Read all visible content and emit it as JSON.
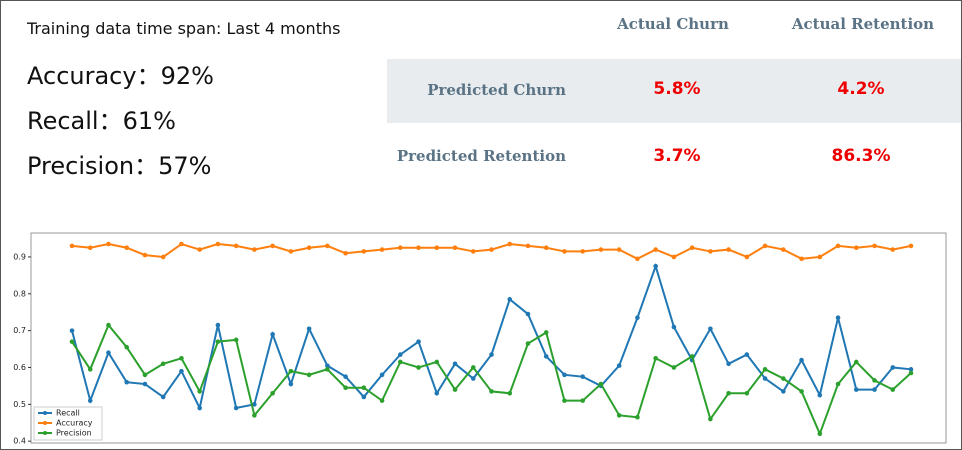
{
  "header": {
    "title": "Training data time span: Last 4 months"
  },
  "metrics": [
    "Accuracy：92%",
    "Recall：61%",
    "Precision：57%"
  ],
  "table": {
    "columns": [
      "Actual Churn",
      "Actual Retention"
    ],
    "rows": [
      {
        "label": "Predicted Churn",
        "cells": [
          "5.8%",
          "4.2%"
        ]
      },
      {
        "label": "Predicted Retention",
        "cells": [
          "3.7%",
          "86.3%"
        ]
      }
    ]
  },
  "chart_data": {
    "type": "line",
    "ylim": [
      0.395,
      0.965
    ],
    "yticks": [
      0.4,
      0.5,
      0.6,
      0.7,
      0.8,
      0.9
    ],
    "legend": "lower left",
    "series": [
      {
        "name": "Recall",
        "color": "#1f77b4",
        "values": [
          0.7,
          0.51,
          0.64,
          0.56,
          0.555,
          0.52,
          0.59,
          0.49,
          0.715,
          0.49,
          0.5,
          0.69,
          0.555,
          0.705,
          0.605,
          0.575,
          0.52,
          0.58,
          0.635,
          0.67,
          0.53,
          0.61,
          0.57,
          0.635,
          0.785,
          0.745,
          0.63,
          0.58,
          0.575,
          0.55,
          0.605,
          0.735,
          0.875,
          0.71,
          0.62,
          0.705,
          0.61,
          0.635,
          0.57,
          0.535,
          0.62,
          0.525,
          0.735,
          0.54,
          0.54,
          0.6,
          0.595
        ]
      },
      {
        "name": "Accuracy",
        "color": "#ff7f0e",
        "values": [
          0.93,
          0.925,
          0.935,
          0.925,
          0.905,
          0.9,
          0.935,
          0.92,
          0.935,
          0.93,
          0.92,
          0.93,
          0.915,
          0.925,
          0.93,
          0.91,
          0.915,
          0.92,
          0.925,
          0.925,
          0.925,
          0.925,
          0.915,
          0.92,
          0.935,
          0.93,
          0.925,
          0.915,
          0.915,
          0.92,
          0.92,
          0.895,
          0.92,
          0.9,
          0.925,
          0.915,
          0.92,
          0.9,
          0.93,
          0.92,
          0.895,
          0.9,
          0.93,
          0.925,
          0.93,
          0.92,
          0.93
        ]
      },
      {
        "name": "Precision",
        "color": "#2ca02c",
        "values": [
          0.67,
          0.595,
          0.715,
          0.655,
          0.58,
          0.61,
          0.625,
          0.535,
          0.67,
          0.675,
          0.47,
          0.53,
          0.59,
          0.58,
          0.595,
          0.545,
          0.545,
          0.51,
          0.615,
          0.6,
          0.615,
          0.54,
          0.6,
          0.535,
          0.53,
          0.665,
          0.695,
          0.51,
          0.51,
          0.555,
          0.47,
          0.465,
          0.625,
          0.6,
          0.63,
          0.46,
          0.53,
          0.53,
          0.595,
          0.57,
          0.535,
          0.42,
          0.555,
          0.615,
          0.565,
          0.54,
          0.585
        ]
      }
    ]
  }
}
